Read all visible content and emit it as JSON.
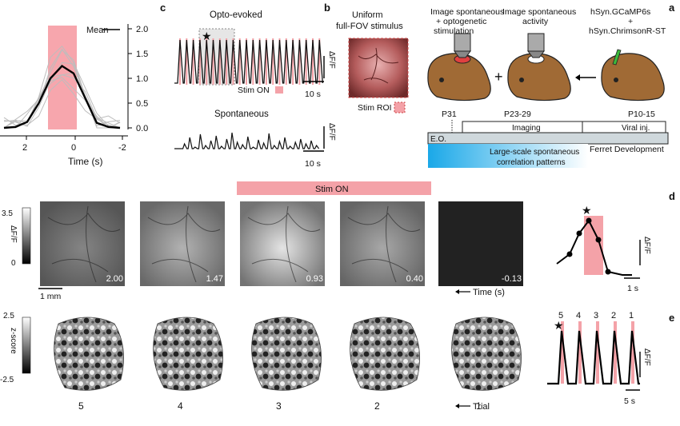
{
  "panel_labels": {
    "a": "a",
    "b": "b",
    "c": "c",
    "d": "d",
    "e": "e"
  },
  "panel_a": {
    "genotype": [
      "hSyn.GCaMP6s",
      "+",
      "hSyn.ChrimsonR-ST"
    ],
    "step_labels": [
      "Image spontaneous",
      "activity"
    ],
    "opto_labels": [
      "Image spontaneous",
      "+ optogenetic",
      "stimulation"
    ],
    "timeline": {
      "ages": [
        "P10-15",
        "P23-29",
        "P31"
      ],
      "viral": "Viral inj.",
      "imaging": "Imaging",
      "eo": "E.O.",
      "ferret": "Ferret Development",
      "patterns_line1": "Large-scale spontaneous",
      "patterns_line2": "correlation patterns"
    }
  },
  "panel_b": {
    "title_line1": "Uniform",
    "title_line2": "full-FOV stimulus",
    "roi_label": "Stim ROI"
  },
  "panel_c": {
    "opto_title": "Opto-evoked",
    "spont_title": "Spontaneous",
    "stim_legend": "Stim ON",
    "scale_y": "ΔF/F",
    "scale_x": "10 s"
  },
  "panel_d_left": {
    "legend": "Mean",
    "y_ticks": [
      "2.0",
      "1.5",
      "1.0",
      "0.5",
      "0.0"
    ],
    "x_ticks": [
      "2",
      "0",
      "-2"
    ],
    "xlabel": "Time (s)",
    "mean_trace": [
      0.0,
      0.02,
      0.12,
      0.5,
      1.0,
      1.25,
      1.1,
      0.6,
      0.1,
      0.02,
      0.0
    ]
  },
  "stim_banner": "Stim ON",
  "frames": {
    "times": [
      "2.00",
      "1.47",
      "0.93",
      "0.40",
      "-0.13"
    ],
    "brightness": [
      0.35,
      0.55,
      0.85,
      0.5,
      0.02
    ],
    "colorbar_max": "3.5",
    "colorbar_min": "0",
    "colorbar_label": "ΔF/F",
    "scalebar": "1 mm",
    "time_label": "Time (s)"
  },
  "trials": {
    "labels": [
      "5",
      "4",
      "3",
      "2",
      "1"
    ],
    "trial_label": "Trial",
    "colorbar_max": "2.5",
    "colorbar_min": "-2.5",
    "colorbar_label": "z-score"
  },
  "panel_d": {
    "scale_y": "ΔF/F",
    "scale_x": "1 s"
  },
  "panel_e": {
    "peak_labels": [
      "5",
      "4",
      "3",
      "2",
      "1"
    ],
    "scale_y": "ΔF/F",
    "scale_x": "5 s"
  }
}
